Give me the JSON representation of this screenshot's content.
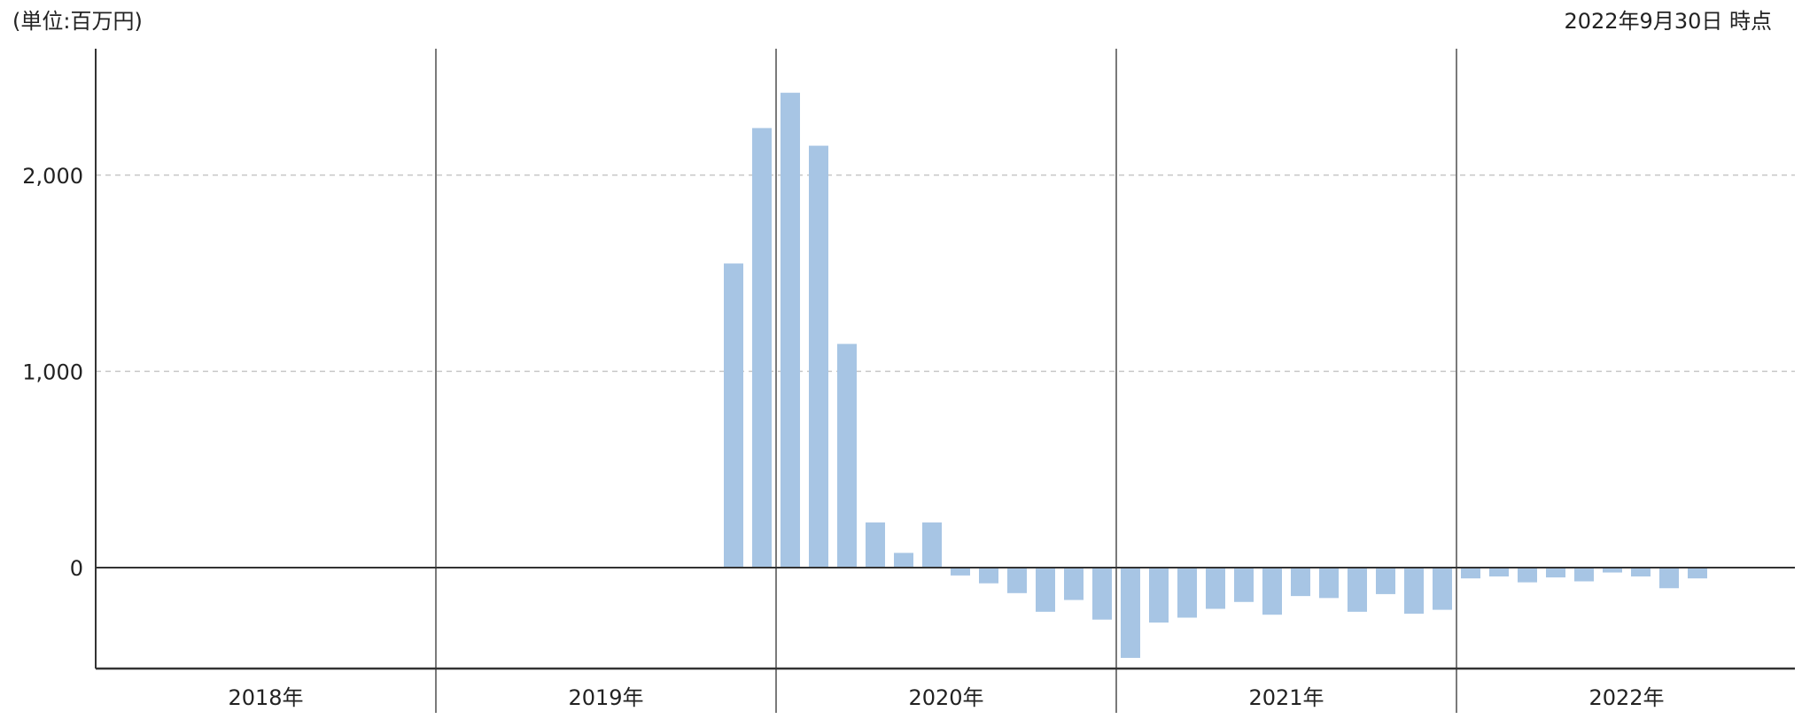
{
  "header": {
    "unit_label": "(単位:百万円)",
    "as_of_label": "2022年9月30日 時点"
  },
  "colors": {
    "bar": "#a7c5e4",
    "axis": "#333333",
    "separator": "#7a7a7a",
    "grid": "#c8c8c8"
  },
  "chart_data": {
    "type": "bar",
    "ylim": [
      -500,
      2650
    ],
    "yticks": [
      0,
      1000,
      2000
    ],
    "ytick_labels": [
      "0",
      "1,000",
      "2,000"
    ],
    "grid": "dashed horizontal",
    "year_labels": [
      "2018年",
      "2019年",
      "2020年",
      "2021年",
      "2022年"
    ],
    "series": [
      {
        "values": [
          null,
          null,
          null,
          null,
          null,
          null,
          null,
          null,
          null,
          null,
          null,
          null,
          null,
          null,
          null,
          null,
          null,
          null,
          null,
          null,
          null,
          null,
          1550,
          2240,
          2420,
          2150,
          1140,
          230,
          75,
          230,
          -40,
          -80,
          -130,
          -225,
          -165,
          -265,
          -460,
          -280,
          -255,
          -210,
          -175,
          -240,
          -145,
          -155,
          -225,
          -135,
          -235,
          -215,
          -55,
          -45,
          -75,
          -50,
          -70,
          -25,
          -45,
          -105,
          -55,
          null,
          null,
          null
        ]
      }
    ]
  }
}
